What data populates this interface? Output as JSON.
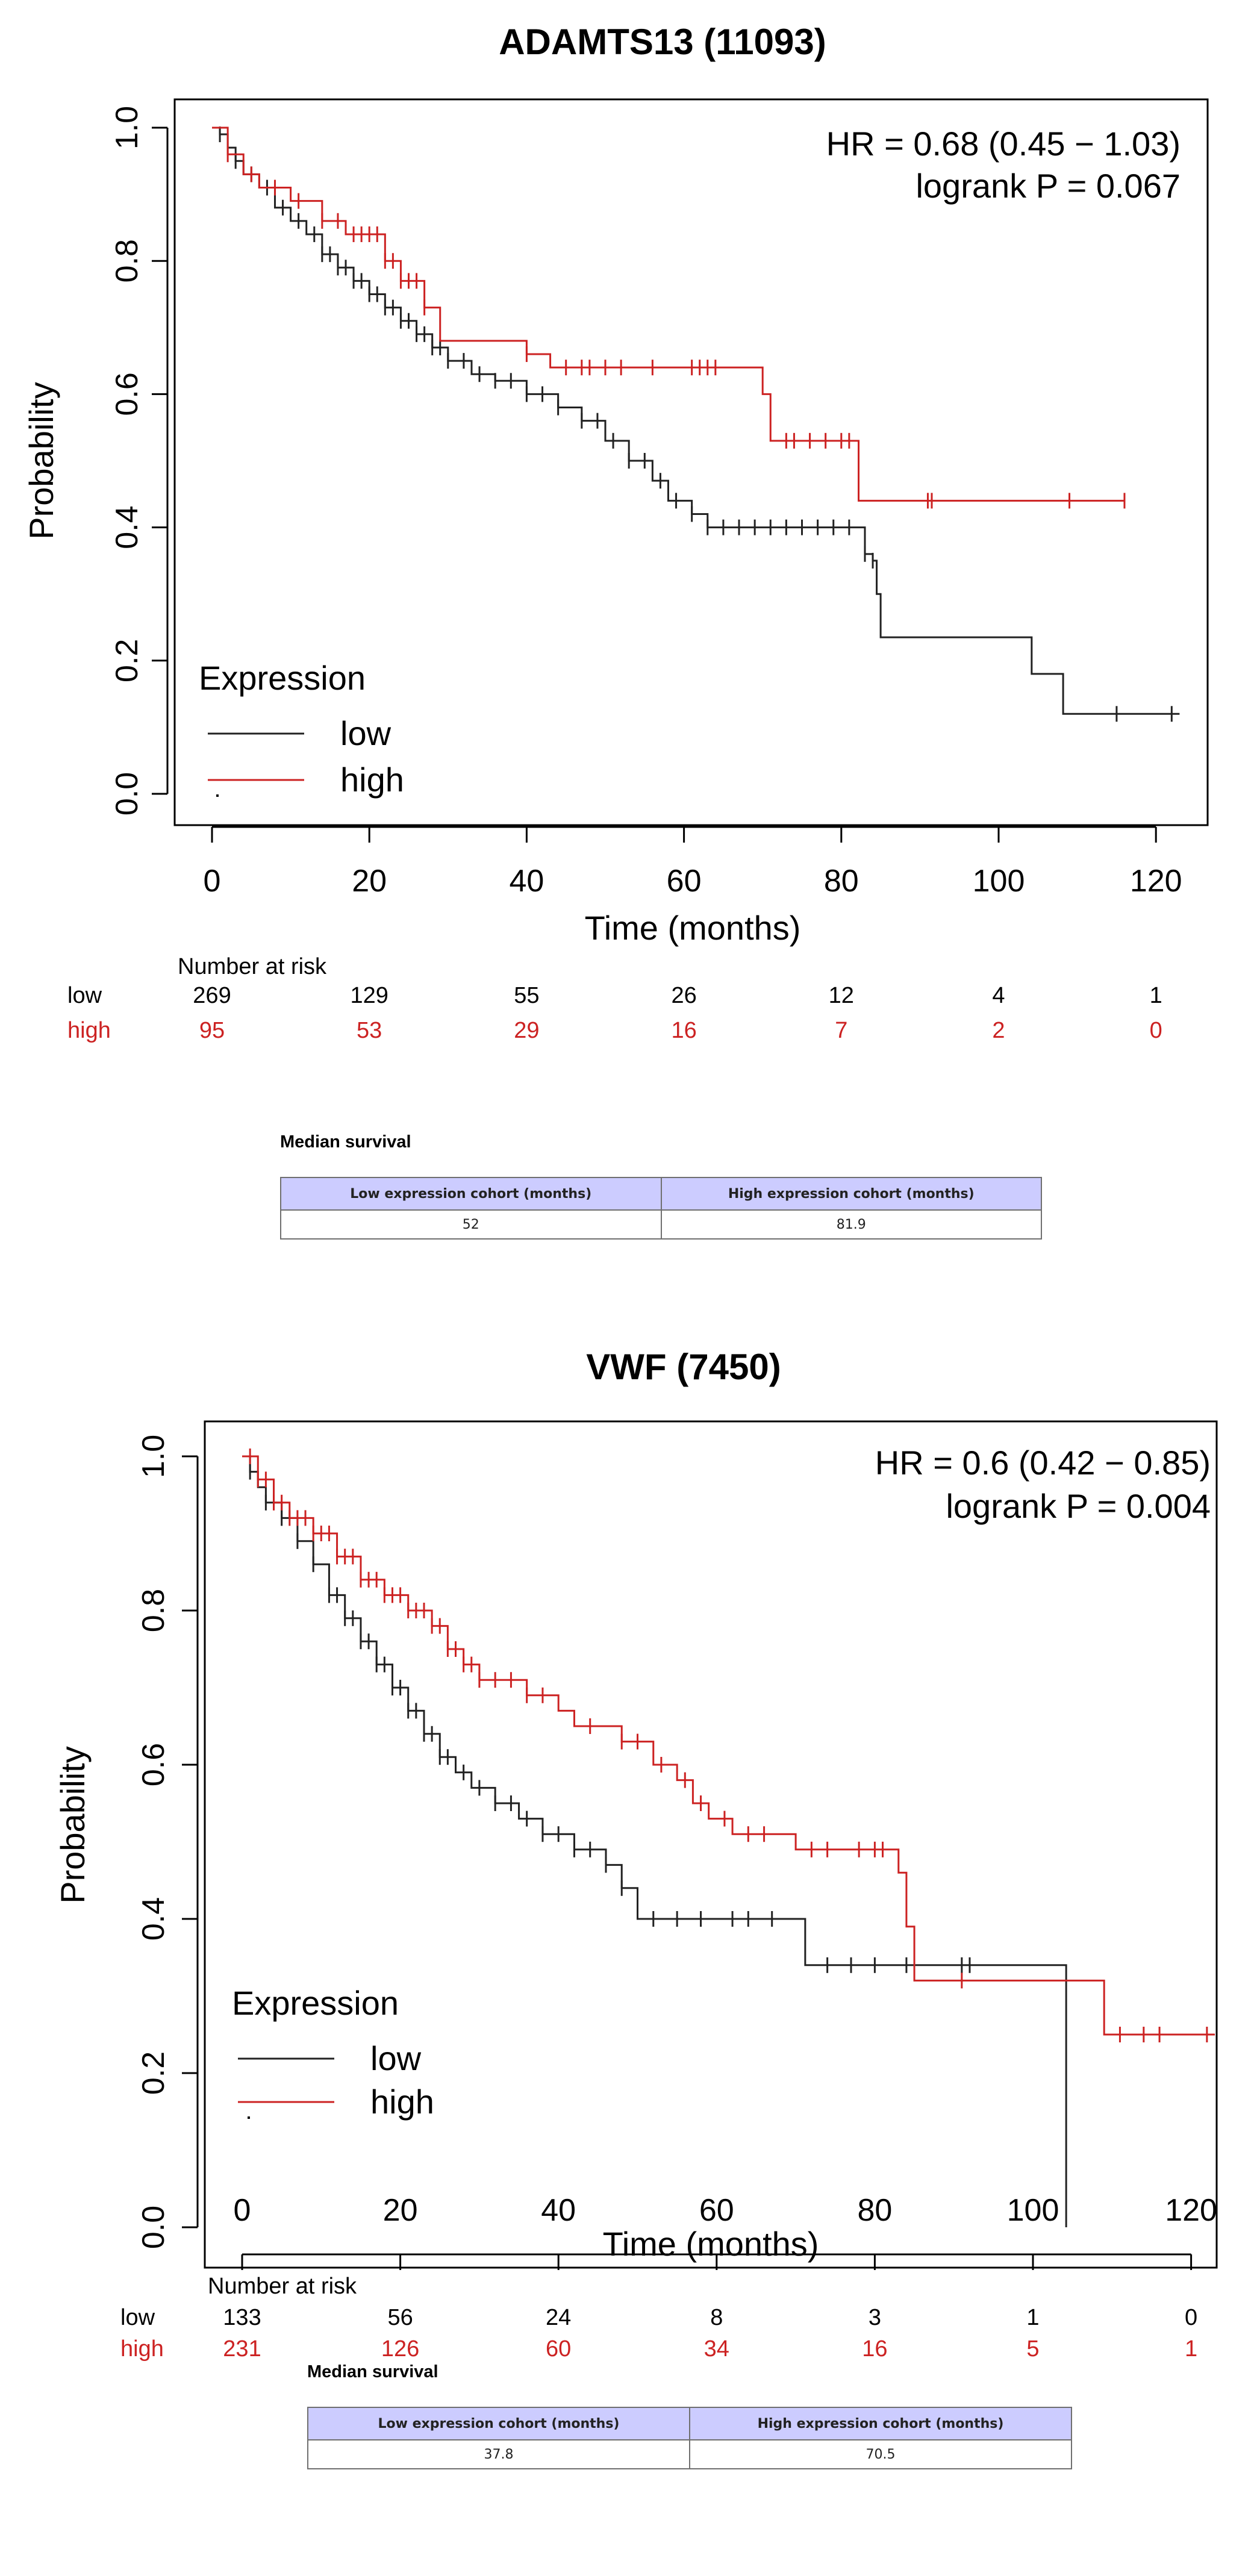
{
  "chart_data": [
    {
      "type": "kaplan-meier",
      "title": "ADAMTS13 (11093)",
      "xlabel": "Time (months)",
      "ylabel": "Probability",
      "xlim": [
        0,
        125
      ],
      "ylim": [
        0,
        1.0
      ],
      "xticks": [
        0,
        20,
        40,
        60,
        80,
        100,
        120
      ],
      "yticks": [
        "0.0",
        "0.2",
        "0.4",
        "0.6",
        "0.8",
        "1.0"
      ],
      "hr_text": "HR = 0.68 (0.45 − 1.03)",
      "p_text": "logrank P = 0.067",
      "legend": {
        "title": "Expression",
        "items": [
          "low",
          "high"
        ]
      },
      "colors": {
        "low": "#222222",
        "high": "#cc2222"
      },
      "series": [
        {
          "name": "low",
          "points": [
            [
              0,
              1.0
            ],
            [
              1,
              0.99
            ],
            [
              2,
              0.97
            ],
            [
              3,
              0.95
            ],
            [
              4,
              0.93
            ],
            [
              6,
              0.91
            ],
            [
              8,
              0.88
            ],
            [
              10,
              0.86
            ],
            [
              12,
              0.84
            ],
            [
              14,
              0.81
            ],
            [
              16,
              0.79
            ],
            [
              18,
              0.77
            ],
            [
              20,
              0.75
            ],
            [
              22,
              0.73
            ],
            [
              24,
              0.71
            ],
            [
              26,
              0.69
            ],
            [
              28,
              0.67
            ],
            [
              30,
              0.65
            ],
            [
              33,
              0.63
            ],
            [
              36,
              0.62
            ],
            [
              40,
              0.6
            ],
            [
              44,
              0.58
            ],
            [
              47,
              0.56
            ],
            [
              50,
              0.53
            ],
            [
              53,
              0.5
            ],
            [
              56,
              0.47
            ],
            [
              58,
              0.44
            ],
            [
              61,
              0.42
            ],
            [
              63,
              0.4
            ],
            [
              82,
              0.4
            ],
            [
              83,
              0.36
            ],
            [
              84,
              0.35
            ],
            [
              84.5,
              0.3
            ],
            [
              85,
              0.235
            ],
            [
              104,
              0.235
            ],
            [
              104.2,
              0.18
            ],
            [
              108,
              0.18
            ],
            [
              108.2,
              0.12
            ],
            [
              123,
              0.12
            ]
          ],
          "censor": [
            1,
            3,
            5,
            7,
            9,
            11,
            13,
            14,
            15,
            16,
            17,
            18,
            19,
            20,
            21,
            22,
            23,
            24,
            25,
            26,
            27,
            28,
            29,
            30,
            32,
            34,
            36,
            38,
            40,
            42,
            44,
            47,
            49,
            51,
            53,
            55,
            57,
            59,
            61,
            63,
            65,
            67,
            69,
            71,
            73,
            75,
            77,
            79,
            81,
            83,
            84,
            115,
            122
          ]
        },
        {
          "name": "high",
          "points": [
            [
              0,
              1.0
            ],
            [
              2,
              0.96
            ],
            [
              4,
              0.93
            ],
            [
              6,
              0.91
            ],
            [
              10,
              0.89
            ],
            [
              14,
              0.86
            ],
            [
              17,
              0.84
            ],
            [
              22,
              0.8
            ],
            [
              24,
              0.77
            ],
            [
              27,
              0.73
            ],
            [
              29,
              0.68
            ],
            [
              38,
              0.68
            ],
            [
              40,
              0.66
            ],
            [
              43,
              0.64
            ],
            [
              68,
              0.64
            ],
            [
              70,
              0.6
            ],
            [
              71,
              0.53
            ],
            [
              82,
              0.53
            ],
            [
              82.2,
              0.44
            ],
            [
              116,
              0.44
            ]
          ],
          "censor": [
            2,
            5,
            8,
            11,
            14,
            16,
            18,
            19,
            20,
            21,
            22,
            23,
            24,
            25,
            26,
            27,
            40,
            45,
            47,
            48,
            50,
            52,
            56,
            61,
            62,
            63,
            64,
            73,
            74,
            76,
            78,
            80,
            81,
            91,
            91.5,
            109,
            116
          ]
        }
      ],
      "risk_table": {
        "title": "Number at risk",
        "rows": [
          {
            "label": "low",
            "values": [
              "269",
              "129",
              "55",
              "26",
              "12",
              "4",
              "1"
            ]
          },
          {
            "label": "high",
            "values": [
              "95",
              "53",
              "29",
              "16",
              "7",
              "2",
              "0"
            ]
          }
        ]
      },
      "median": {
        "title": "Median survival",
        "headers": [
          "Low expression cohort (months)",
          "High expression cohort (months)"
        ],
        "values": [
          "52",
          "81.9"
        ]
      }
    },
    {
      "type": "kaplan-meier",
      "title": "VWF (7450)",
      "xlabel": "Time (months)",
      "ylabel": "Probability",
      "xlim": [
        0,
        125
      ],
      "ylim": [
        0,
        1.0
      ],
      "xticks": [
        0,
        20,
        40,
        60,
        80,
        100,
        120
      ],
      "yticks": [
        "0.0",
        "0.2",
        "0.4",
        "0.6",
        "0.8",
        "1.0"
      ],
      "hr_text": "HR = 0.6 (0.42 − 0.85)",
      "p_text": "logrank P = 0.004",
      "legend": {
        "title": "Expression",
        "items": [
          "low",
          "high"
        ]
      },
      "colors": {
        "low": "#222222",
        "high": "#cc2222"
      },
      "series": [
        {
          "name": "low",
          "points": [
            [
              0,
              1.0
            ],
            [
              1,
              0.98
            ],
            [
              2,
              0.96
            ],
            [
              3,
              0.94
            ],
            [
              5,
              0.92
            ],
            [
              7,
              0.89
            ],
            [
              9,
              0.86
            ],
            [
              11,
              0.82
            ],
            [
              13,
              0.79
            ],
            [
              15,
              0.76
            ],
            [
              17,
              0.73
            ],
            [
              19,
              0.7
            ],
            [
              21,
              0.67
            ],
            [
              23,
              0.64
            ],
            [
              25,
              0.61
            ],
            [
              27,
              0.59
            ],
            [
              29,
              0.57
            ],
            [
              32,
              0.55
            ],
            [
              35,
              0.53
            ],
            [
              38,
              0.51
            ],
            [
              42,
              0.49
            ],
            [
              46,
              0.47
            ],
            [
              48,
              0.44
            ],
            [
              50,
              0.4
            ],
            [
              71,
              0.4
            ],
            [
              71.2,
              0.34
            ],
            [
              104,
              0.34
            ],
            [
              104.2,
              0.0
            ]
          ],
          "censor": [
            1,
            3,
            5,
            7,
            9,
            11,
            12,
            13,
            14,
            15,
            16,
            17,
            18,
            19,
            20,
            21,
            22,
            23,
            24,
            25,
            26,
            28,
            30,
            32,
            34,
            36,
            38,
            40,
            42,
            44,
            46,
            48,
            52,
            55,
            58,
            62,
            64,
            67,
            74,
            77,
            80,
            84,
            91,
            92
          ]
        },
        {
          "name": "high",
          "points": [
            [
              0,
              1.0
            ],
            [
              2,
              0.97
            ],
            [
              4,
              0.94
            ],
            [
              6,
              0.92
            ],
            [
              9,
              0.9
            ],
            [
              12,
              0.87
            ],
            [
              15,
              0.84
            ],
            [
              18,
              0.82
            ],
            [
              21,
              0.8
            ],
            [
              24,
              0.78
            ],
            [
              26,
              0.75
            ],
            [
              28,
              0.73
            ],
            [
              30,
              0.71
            ],
            [
              36,
              0.69
            ],
            [
              40,
              0.67
            ],
            [
              42,
              0.65
            ],
            [
              48,
              0.63
            ],
            [
              52,
              0.6
            ],
            [
              55,
              0.58
            ],
            [
              57,
              0.55
            ],
            [
              59,
              0.53
            ],
            [
              62,
              0.51
            ],
            [
              68,
              0.51
            ],
            [
              70,
              0.49
            ],
            [
              82,
              0.49
            ],
            [
              83,
              0.46
            ],
            [
              84,
              0.39
            ],
            [
              85,
              0.32
            ],
            [
              104,
              0.32
            ],
            [
              109,
              0.25
            ],
            [
              123,
              0.25
            ]
          ],
          "censor": [
            1,
            2,
            3,
            4,
            5,
            6,
            7,
            8,
            9,
            10,
            11,
            12,
            13,
            14,
            15,
            16,
            17,
            18,
            19,
            20,
            21,
            22,
            23,
            24,
            25,
            26,
            27,
            28,
            29,
            30,
            32,
            34,
            36,
            38,
            44,
            48,
            50,
            53,
            56,
            58,
            61,
            64,
            66,
            72,
            74,
            78,
            80,
            81,
            91,
            111,
            114,
            116,
            122
          ]
        }
      ],
      "risk_table": {
        "title": "Number at risk",
        "rows": [
          {
            "label": "low",
            "values": [
              "133",
              "56",
              "24",
              "8",
              "3",
              "1",
              "0"
            ]
          },
          {
            "label": "high",
            "values": [
              "231",
              "126",
              "60",
              "34",
              "16",
              "5",
              "1"
            ]
          }
        ]
      },
      "median": {
        "title": "Median survival",
        "headers": [
          "Low expression cohort (months)",
          "High expression cohort (months)"
        ],
        "values": [
          "37.8",
          "70.5"
        ]
      }
    }
  ]
}
